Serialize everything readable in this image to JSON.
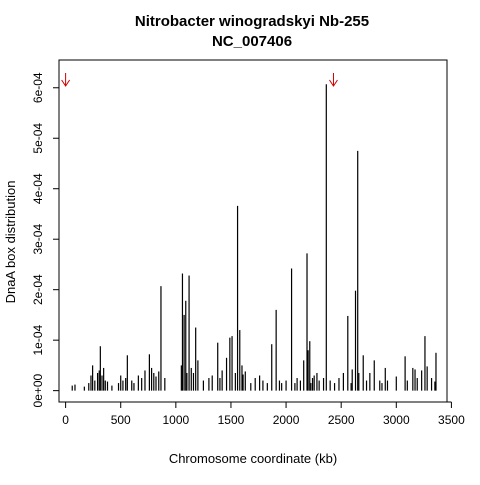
{
  "chart_data": {
    "type": "bar",
    "title": "Nitrobacter winogradskyi Nb-255",
    "subtitle": "NC_007406",
    "xlabel": "Chromosome coordinate (kb)",
    "ylabel": "DnaA box distribution",
    "xlim": [
      -60,
      3460
    ],
    "ylim": [
      -2.25e-05,
      0.000655
    ],
    "x_ticks": [
      0,
      500,
      1000,
      1500,
      2000,
      2500,
      3000,
      3500
    ],
    "x_tick_labels": [
      "0",
      "500",
      "1000",
      "1500",
      "2000",
      "2500",
      "3000",
      "3500"
    ],
    "y_ticks": [
      0,
      0.0001,
      0.0002,
      0.0003,
      0.0004,
      0.0005,
      0.0006
    ],
    "y_tick_labels": [
      "0e+00",
      "1e-04",
      "2e-04",
      "3e-04",
      "4e-04",
      "5e-04",
      "6e-04"
    ],
    "bar_color": "#000000",
    "marker_color": "#cc0000",
    "markers_x": [
      0,
      2430
    ],
    "x": [
      60,
      85,
      170,
      210,
      230,
      245,
      265,
      290,
      305,
      315,
      330,
      345,
      360,
      380,
      420,
      480,
      500,
      520,
      545,
      560,
      600,
      620,
      660,
      690,
      720,
      760,
      780,
      800,
      820,
      845,
      865,
      900,
      1050,
      1060,
      1075,
      1090,
      1100,
      1120,
      1140,
      1160,
      1180,
      1200,
      1250,
      1300,
      1330,
      1380,
      1400,
      1420,
      1460,
      1490,
      1510,
      1540,
      1560,
      1580,
      1600,
      1610,
      1630,
      1680,
      1720,
      1760,
      1790,
      1830,
      1870,
      1910,
      1940,
      1960,
      2000,
      2050,
      2080,
      2100,
      2130,
      2160,
      2190,
      2200,
      2215,
      2225,
      2240,
      2255,
      2280,
      2300,
      2340,
      2365,
      2400,
      2440,
      2480,
      2520,
      2560,
      2590,
      2600,
      2630,
      2650,
      2660,
      2700,
      2730,
      2760,
      2800,
      2850,
      2870,
      2900,
      2920,
      3000,
      3080,
      3100,
      3150,
      3170,
      3190,
      3230,
      3260,
      3280,
      3320,
      3350,
      3360
    ],
    "values": [
      1e-05,
      1.2e-05,
      8e-06,
      1.5e-05,
      3e-05,
      5e-05,
      2e-05,
      3.5e-05,
      4e-05,
      8.8e-05,
      3e-05,
      4.5e-05,
      2e-05,
      1.8e-05,
      1e-05,
      1.5e-05,
      3e-05,
      2e-05,
      2.5e-05,
      7e-05,
      2e-05,
      1.5e-05,
      3e-05,
      2.5e-05,
      4e-05,
      7.2e-05,
      4.5e-05,
      3.5e-05,
      2.8e-05,
      3.8e-05,
      0.000207,
      2.5e-05,
      5e-05,
      0.000232,
      0.00015,
      0.000178,
      3.5e-05,
      0.000228,
      4.5e-05,
      3.5e-05,
      0.000125,
      6e-05,
      2e-05,
      2.5e-05,
      3e-05,
      9.5e-05,
      2.5e-05,
      4e-05,
      6.5e-05,
      0.000105,
      0.000108,
      3.5e-05,
      0.000366,
      0.00012,
      5e-05,
      3.2e-05,
      3.8e-05,
      1.5e-05,
      2.5e-05,
      3e-05,
      2e-05,
      1.5e-05,
      9.2e-05,
      0.00016,
      2e-05,
      1.5e-05,
      2e-05,
      0.000242,
      1.5e-05,
      2.5e-05,
      2e-05,
      6e-05,
      0.000272,
      8e-05,
      9.8e-05,
      1.5e-05,
      2.5e-05,
      3e-05,
      3.5e-05,
      2e-05,
      2.5e-05,
      0.000607,
      2e-05,
      1.5e-05,
      2.5e-05,
      3.5e-05,
      0.000148,
      1.5e-05,
      4.2e-05,
      0.000198,
      0.000475,
      3.5e-05,
      7e-05,
      2e-05,
      3.5e-05,
      6e-05,
      2e-05,
      1.5e-05,
      4.5e-05,
      2e-05,
      2.8e-05,
      6.8e-05,
      2e-05,
      4.5e-05,
      4.2e-05,
      2.5e-05,
      4e-05,
      0.000108,
      4.8e-05,
      2.5e-05,
      1.8e-05,
      7.5e-05
    ]
  }
}
